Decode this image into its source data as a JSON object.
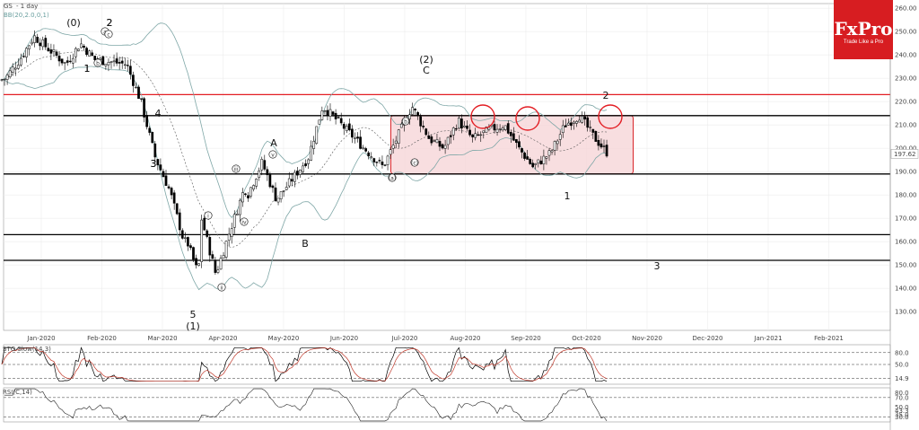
{
  "header": {
    "symbol": "GS",
    "timeframe": "- 1 day",
    "indicator": "BB(20,2.0,0,1)"
  },
  "logo": {
    "brand": "FxPro",
    "tagline": "Trade Like a Pro"
  },
  "panels": {
    "sto_label": "STO Slow(14,3)",
    "rsi_label": "RSI(C,14)"
  },
  "colors": {
    "up": "#ffffff",
    "down": "#000000",
    "band": "#7fa7a7",
    "resistance": "#e31e24",
    "zone": "#f6d6d8",
    "zone_border": "#d9252a"
  },
  "chart_data": {
    "type": "candlestick",
    "title": "GS - 1 day",
    "price_axis": {
      "ticks": [
        260,
        250,
        240,
        230,
        220,
        210,
        200,
        190,
        180,
        170,
        160,
        150,
        140,
        130
      ],
      "last_price": "197.62",
      "ylim": [
        122,
        262
      ]
    },
    "time_axis": {
      "ticks": [
        "Jan-2020",
        "Feb-2020",
        "Mar-2020",
        "Apr-2020",
        "May-2020",
        "Jun-2020",
        "Jul-2020",
        "Aug-2020",
        "Sep-2020",
        "Oct-2020",
        "Nov-2020",
        "Dec-2020",
        "Jan-2021",
        "Feb-2021"
      ]
    },
    "horizontal_levels": [
      {
        "value": 223,
        "color": "red"
      },
      {
        "value": 214,
        "color": "black"
      },
      {
        "value": 189,
        "color": "black"
      },
      {
        "value": 163,
        "color": "black"
      },
      {
        "value": 152,
        "color": "black"
      }
    ],
    "consolidation_zone": {
      "from": "Jun-2020",
      "to": "Oct-2020",
      "top": 214,
      "bottom": 189
    },
    "price_path": [
      [
        "Dec-2019",
        221
      ],
      [
        "Jan-2020",
        230
      ],
      [
        "Jan-2020",
        238
      ],
      [
        "Jan-2020",
        248
      ],
      [
        "Feb-2020",
        236
      ],
      [
        "Feb-2020",
        245
      ],
      [
        "Feb-2020",
        238
      ],
      [
        "Mar-2020",
        236
      ],
      [
        "Mar-2020",
        220
      ],
      [
        "Mar-2020",
        196
      ],
      [
        "Mar-2020",
        182
      ],
      [
        "Mar-2020",
        160
      ],
      [
        "Mar-2020",
        146
      ],
      [
        "Apr-2020",
        160
      ],
      [
        "Apr-2020",
        170
      ],
      [
        "Apr-2020",
        146
      ],
      [
        "Apr-2020",
        165
      ],
      [
        "Apr-2020",
        183
      ],
      [
        "May-2020",
        180
      ],
      [
        "May-2020",
        194
      ],
      [
        "May-2020",
        178
      ],
      [
        "May-2020",
        186
      ],
      [
        "Jun-2020",
        196
      ],
      [
        "Jun-2020",
        218
      ],
      [
        "Jun-2020",
        212
      ],
      [
        "Jul-2020",
        198
      ],
      [
        "Jul-2020",
        192
      ],
      [
        "Jul-2020",
        205
      ],
      [
        "Jul-2020",
        218
      ],
      [
        "Aug-2020",
        204
      ],
      [
        "Aug-2020",
        200
      ],
      [
        "Aug-2020",
        212
      ],
      [
        "Aug-2020",
        204
      ],
      [
        "Sep-2020",
        208
      ],
      [
        "Sep-2020",
        210
      ],
      [
        "Sep-2020",
        200
      ],
      [
        "Sep-2020",
        192
      ],
      [
        "Oct-2020",
        198
      ],
      [
        "Oct-2020",
        210
      ],
      [
        "Oct-2020",
        214
      ],
      [
        "Oct-2020",
        205
      ],
      [
        "Oct-2020",
        197.62
      ]
    ],
    "wave_labels": [
      "(0)",
      "2",
      "1",
      "3",
      "4",
      "5",
      "(1)",
      "A",
      "B",
      "C",
      "(2)",
      "2",
      "1",
      "3",
      "a",
      "b",
      "c",
      "i",
      "ii",
      "iii",
      "iv",
      "v",
      "(a)",
      "(b)",
      "(c)"
    ],
    "stochastic": {
      "name": "STO Slow(14,3)",
      "levels": [
        80.0,
        50.0,
        14.9
      ]
    },
    "rsi": {
      "name": "RSI(C,14)",
      "levels": [
        80.0,
        70.0,
        50.0,
        43.3,
        35.0,
        30.0
      ]
    }
  }
}
